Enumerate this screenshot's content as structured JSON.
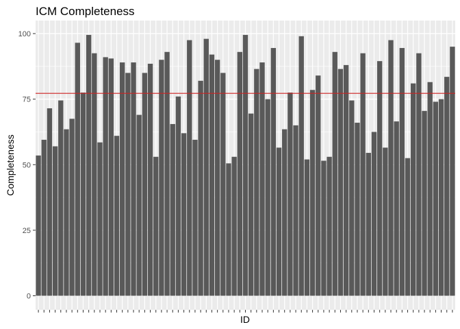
{
  "chart_data": {
    "type": "bar",
    "title": "ICM Completeness",
    "xlabel": "ID",
    "ylabel": "Completeness",
    "ylim": [
      0,
      105
    ],
    "yticks": [
      0,
      25,
      50,
      75,
      100
    ],
    "grid": true,
    "legend": "none",
    "bar_color": "#595959",
    "panel_color": "#ebebeb",
    "reference_line": {
      "value": 77.2,
      "color": "#cc2222"
    },
    "values": [
      53.5,
      59.5,
      71.5,
      57,
      74.5,
      63.5,
      67.5,
      96.5,
      77.5,
      99.5,
      92.5,
      58.5,
      91,
      90.5,
      61,
      89,
      85,
      89,
      69,
      85,
      88.5,
      53,
      90,
      93,
      65.5,
      76,
      62,
      97.5,
      59.5,
      82,
      98,
      92,
      90,
      85,
      50.5,
      53,
      93,
      99.5,
      69.5,
      86.5,
      89,
      75,
      94.5,
      56.5,
      63.5,
      77.5,
      65,
      99,
      52,
      78.5,
      84,
      51.5,
      53,
      93,
      86.5,
      88,
      74.5,
      66,
      92.5,
      54.5,
      62.5,
      89.5,
      56.5,
      97.5,
      66.5,
      94.5,
      52.5,
      81,
      92.5,
      70.5,
      81.5,
      74,
      75,
      83.5,
      95
    ]
  }
}
